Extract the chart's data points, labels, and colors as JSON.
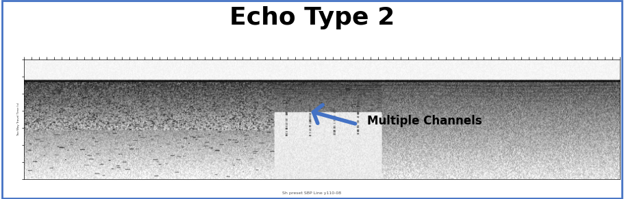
{
  "title": "Echo Type 2",
  "title_fontsize": 26,
  "title_fontweight": "bold",
  "annotation_text": "Multiple Channels",
  "annotation_fontsize": 12,
  "annotation_fontweight": "bold",
  "annotation_color": "#000000",
  "arrow_color": "#4472C4",
  "border_color": "#4472C4",
  "border_linewidth": 2.0,
  "bg_color": "#ffffff",
  "caption": "Sh preset SBP Line y110-08"
}
